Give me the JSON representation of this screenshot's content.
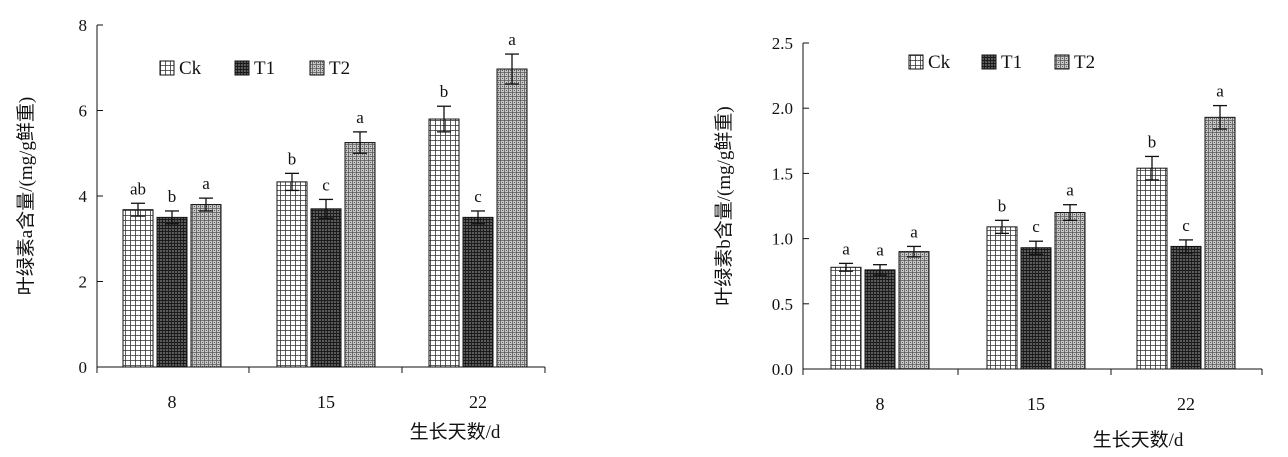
{
  "chart_data": [
    {
      "type": "bar",
      "ylabel": "叶绿素a含量/(mg/g鲜重)",
      "xlabel": "生长天数/d",
      "categories": [
        "8",
        "15",
        "22"
      ],
      "ylim": [
        0,
        8
      ],
      "yticks": [
        "0",
        "2",
        "4",
        "6",
        "8"
      ],
      "legend_position": "top-left",
      "series": [
        {
          "name": "Ck",
          "values": [
            3.68,
            4.33,
            5.8
          ],
          "errors": [
            0.15,
            0.2,
            0.3
          ],
          "letters": [
            "ab",
            "b",
            "b"
          ]
        },
        {
          "name": "T1",
          "values": [
            3.5,
            3.7,
            3.5
          ],
          "errors": [
            0.15,
            0.22,
            0.15
          ],
          "letters": [
            "b",
            "c",
            "c"
          ]
        },
        {
          "name": "T2",
          "values": [
            3.8,
            5.25,
            6.97
          ],
          "errors": [
            0.15,
            0.25,
            0.35
          ],
          "letters": [
            "a",
            "a",
            "a"
          ]
        }
      ]
    },
    {
      "type": "bar",
      "ylabel": "叶绿素b含量/(mg/g鲜重)",
      "xlabel": "生长天数/d",
      "categories": [
        "8",
        "15",
        "22"
      ],
      "ylim": [
        0,
        2.5
      ],
      "yticks": [
        "0.0",
        "0.5",
        "1.0",
        "1.5",
        "2.0",
        "2.5"
      ],
      "legend_position": "top-left",
      "series": [
        {
          "name": "Ck",
          "values": [
            0.78,
            1.09,
            1.54
          ],
          "errors": [
            0.03,
            0.05,
            0.09
          ],
          "letters": [
            "a",
            "b",
            "b"
          ]
        },
        {
          "name": "T1",
          "values": [
            0.76,
            0.93,
            0.94
          ],
          "errors": [
            0.04,
            0.05,
            0.05
          ],
          "letters": [
            "a",
            "c",
            "c"
          ]
        },
        {
          "name": "T2",
          "values": [
            0.9,
            1.2,
            1.93
          ],
          "errors": [
            0.04,
            0.06,
            0.09
          ],
          "letters": [
            "a",
            "a",
            "a"
          ]
        }
      ]
    }
  ]
}
